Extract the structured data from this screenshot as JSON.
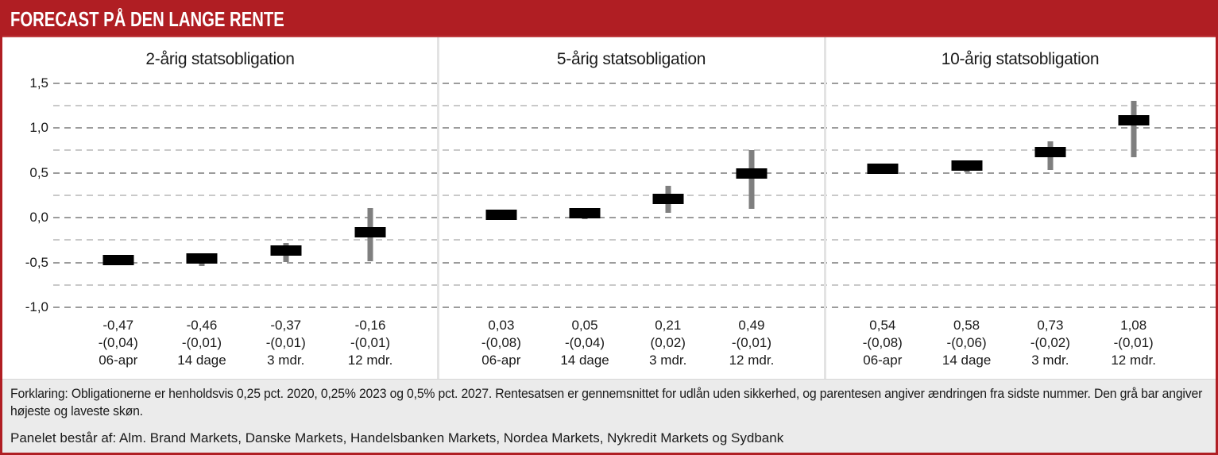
{
  "header": {
    "title": "FORECAST PÅ DEN LANGE RENTE"
  },
  "y_axis": {
    "tick_labels": [
      "1,5",
      "1,0",
      "0,5",
      "0,0",
      "-0,5",
      "-1,0"
    ],
    "tick_values": [
      1.5,
      1.0,
      0.5,
      0.0,
      -0.5,
      -1.0
    ]
  },
  "chart_data": {
    "type": "bar",
    "subtype": "estimate bars with high-low whiskers (gray bar = highest and lowest estimate)",
    "ylim": [
      -1.0,
      1.5
    ],
    "grid": "dashed horizontal lines every 0.25, labeled every 0.5",
    "legend_position": "none",
    "categories": [
      "06-apr",
      "14 dage",
      "3 mdr.",
      "12 mdr."
    ],
    "panels": [
      {
        "title": "2-årig statsobligation",
        "points": [
          {
            "value": -0.47,
            "value_label": "-0,47",
            "change_label": "-(0,04)",
            "period": "06-apr",
            "high": null,
            "low": null
          },
          {
            "value": -0.46,
            "value_label": "-0,46",
            "change_label": "-(0,01)",
            "period": "14 dage",
            "high": -0.41,
            "low": -0.54
          },
          {
            "value": -0.37,
            "value_label": "-0,37",
            "change_label": "-(0,01)",
            "period": "3 mdr.",
            "high": -0.28,
            "low": -0.5
          },
          {
            "value": -0.16,
            "value_label": "-0,16",
            "change_label": "-(0,01)",
            "period": "12 mdr.",
            "high": 0.11,
            "low": -0.49
          }
        ]
      },
      {
        "title": "5-årig statsobligation",
        "points": [
          {
            "value": 0.03,
            "value_label": "0,03",
            "change_label": "-(0,08)",
            "period": "06-apr",
            "high": null,
            "low": null
          },
          {
            "value": 0.05,
            "value_label": "0,05",
            "change_label": "-(0,04)",
            "period": "14 dage",
            "high": 0.09,
            "low": -0.02
          },
          {
            "value": 0.21,
            "value_label": "0,21",
            "change_label": "(0,02)",
            "period": "3 mdr.",
            "high": 0.35,
            "low": 0.05
          },
          {
            "value": 0.49,
            "value_label": "0,49",
            "change_label": "-(0,01)",
            "period": "12 mdr.",
            "high": 0.75,
            "low": 0.1
          }
        ]
      },
      {
        "title": "10-årig statsobligation",
        "points": [
          {
            "value": 0.54,
            "value_label": "0,54",
            "change_label": "-(0,08)",
            "period": "06-apr",
            "high": null,
            "low": null
          },
          {
            "value": 0.58,
            "value_label": "0,58",
            "change_label": "-(0,06)",
            "period": "14 dage",
            "high": 0.64,
            "low": 0.5
          },
          {
            "value": 0.73,
            "value_label": "0,73",
            "change_label": "-(0,02)",
            "period": "3 mdr.",
            "high": 0.85,
            "low": 0.53
          },
          {
            "value": 1.08,
            "value_label": "1,08",
            "change_label": "-(0,01)",
            "period": "12 mdr.",
            "high": 1.3,
            "low": 0.67
          }
        ]
      }
    ]
  },
  "footer": {
    "explanation": "Forklaring: Obligationerne er henholdsvis 0,25 pct. 2020, 0,25% 2023 og 0,5% pct. 2027. Rentesatsen er gennemsnittet for udlån uden sikkerhed, og parentesen angiver ændringen fra sidste nummer. Den grå bar angiver højeste og laveste skøn.",
    "panel_note": "Panelet består af: Alm. Brand Markets, Danske Markets, Handelsbanken Markets, Nordea Markets, Nykredit Markets og Sydbank"
  },
  "colors": {
    "accent_red": "#b01e23",
    "bar_black": "#000000",
    "whisker_gray": "#7f7f7f",
    "footer_bg": "#ebebeb",
    "gridline_major": "#9c9c9c",
    "gridline_minor": "#c9c9c9"
  }
}
